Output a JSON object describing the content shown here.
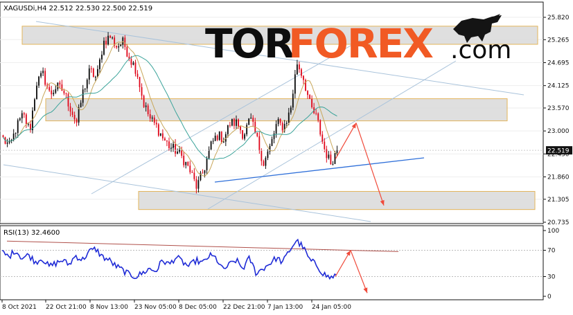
{
  "chart_data": [
    {
      "type": "candlestick",
      "symbol_info": "XAGUSDi,H4  22.512 22.530 22.500 22.519",
      "current_price": 22.519,
      "current_price_label": "22.519",
      "ylim": [
        20.735,
        25.82
      ],
      "y_ticks": [
        "25.820",
        "25.265",
        "24.695",
        "24.125",
        "23.570",
        "23.000",
        "22.430",
        "21.860",
        "21.305",
        "20.735"
      ],
      "x_tick_labels": [
        "8 Oct 2021",
        "22 Oct 21:00",
        "8 Nov 13:00",
        "23 Nov 05:00",
        "8 Dec 05:00",
        "22 Dec 21:00",
        "7 Jan 13:00",
        "24 Jan 05:00"
      ],
      "price_path": [
        22.8,
        22.6,
        23.1,
        23.4,
        23.0,
        24.2,
        24.4,
        23.9,
        24.1,
        24.0,
        23.6,
        23.2,
        24.0,
        24.5,
        24.3,
        25.2,
        25.35,
        25.1,
        25.2,
        24.8,
        24.5,
        23.7,
        23.3,
        23.1,
        22.8,
        22.6,
        22.5,
        22.3,
        22.0,
        21.6,
        22.0,
        22.6,
        22.9,
        22.8,
        23.2,
        23.2,
        22.9,
        23.3,
        22.8,
        22.2,
        22.6,
        23.2,
        23.1,
        23.5,
        24.7,
        24.3,
        23.6,
        23.3,
        22.6,
        22.2,
        22.52
      ],
      "indicators": [
        {
          "name": "Moving average (fast)",
          "color": "#c9a75a"
        },
        {
          "name": "Moving average (slow)",
          "color": "#3aa39a"
        }
      ],
      "zones": [
        {
          "low": 25.15,
          "high": 25.6
        },
        {
          "low": 23.25,
          "high": 23.8
        },
        {
          "low": 21.05,
          "high": 21.5
        }
      ],
      "forecast_arrow_points": [
        22.3,
        23.2,
        21.15
      ],
      "colors": {
        "up": "#0a0a0a",
        "down": "#e0081b",
        "support": "#2e6fd9",
        "channel": "#a9c3db",
        "forecast": "#f04a3a",
        "zone_fill": "#d9d9d9",
        "zone_border": "#e3b45a"
      }
    },
    {
      "type": "line",
      "title": "RSI(13) 32.4600",
      "ylim": [
        0,
        100
      ],
      "y_ticks": [
        "100",
        "70",
        "30",
        "0"
      ],
      "values": [
        67,
        60,
        70,
        58,
        63,
        52,
        58,
        45,
        50,
        55,
        48,
        62,
        55,
        68,
        72,
        60,
        55,
        46,
        40,
        33,
        30,
        35,
        42,
        38,
        55,
        48,
        60,
        52,
        45,
        55,
        50,
        62,
        58,
        40,
        48,
        55,
        42,
        58,
        35,
        42,
        50,
        58,
        52,
        70,
        85,
        75,
        55,
        48,
        35,
        28,
        32.46
      ],
      "line_color": "#1f2bd6",
      "forecast_arrow_points": [
        30,
        70,
        5
      ]
    }
  ],
  "watermark": {
    "part1": "TOR",
    "part2": "FOREX",
    "part3": ".com"
  }
}
